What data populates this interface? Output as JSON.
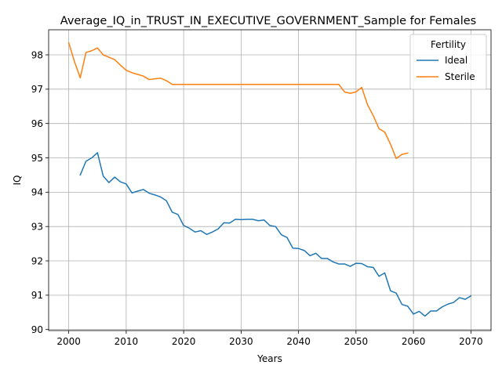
{
  "chart_data": {
    "type": "line",
    "title": "Average_IQ_in_TRUST_IN_EXECUTIVE_GOVERNMENT_Sample for Females",
    "xlabel": "Years",
    "ylabel": "IQ",
    "xlim": [
      1996.5,
      2073.5
    ],
    "ylim": [
      89.97,
      98.73
    ],
    "xticks": [
      2000,
      2010,
      2020,
      2030,
      2040,
      2050,
      2060,
      2070
    ],
    "yticks": [
      90,
      91,
      92,
      93,
      94,
      95,
      96,
      97,
      98
    ],
    "grid": true,
    "legend": {
      "title": "Fertility",
      "placement": "top-right"
    },
    "series": [
      {
        "name": "Ideal",
        "color": "#1f77b4",
        "x": [
          2002,
          2003,
          2004,
          2005,
          2006,
          2007,
          2008,
          2009,
          2010,
          2011,
          2012,
          2013,
          2014,
          2015,
          2016,
          2017,
          2018,
          2019,
          2020,
          2021,
          2022,
          2023,
          2024,
          2025,
          2026,
          2027,
          2028,
          2029,
          2030,
          2031,
          2032,
          2033,
          2034,
          2035,
          2036,
          2037,
          2038,
          2039,
          2040,
          2041,
          2042,
          2043,
          2044,
          2045,
          2046,
          2047,
          2048,
          2049,
          2050,
          2051,
          2052,
          2053,
          2054,
          2055,
          2056,
          2057,
          2058,
          2059,
          2060,
          2061,
          2062,
          2063,
          2064,
          2065,
          2066,
          2067,
          2068,
          2069,
          2070
        ],
        "y": [
          94.5,
          94.9,
          95.0,
          95.15,
          94.47,
          94.28,
          94.44,
          94.3,
          94.24,
          93.98,
          94.03,
          94.08,
          93.97,
          93.92,
          93.86,
          93.75,
          93.42,
          93.35,
          93.03,
          92.95,
          92.84,
          92.88,
          92.77,
          92.84,
          92.93,
          93.11,
          93.1,
          93.21,
          93.2,
          93.21,
          93.21,
          93.17,
          93.19,
          93.03,
          93.0,
          92.76,
          92.68,
          92.37,
          92.36,
          92.3,
          92.15,
          92.22,
          92.07,
          92.07,
          91.97,
          91.91,
          91.91,
          91.84,
          91.93,
          91.92,
          91.83,
          91.81,
          91.55,
          91.65,
          91.13,
          91.06,
          90.73,
          90.68,
          90.45,
          90.53,
          90.39,
          90.54,
          90.54,
          90.66,
          90.74,
          90.79,
          90.93,
          90.88,
          90.98
        ]
      },
      {
        "name": "Sterile",
        "color": "#ff7f0e",
        "x": [
          2000,
          2001,
          2002,
          2003,
          2004,
          2005,
          2006,
          2007,
          2008,
          2009,
          2010,
          2011,
          2012,
          2013,
          2014,
          2015,
          2016,
          2017,
          2018,
          2019,
          2020,
          2021,
          2022,
          2023,
          2024,
          2025,
          2026,
          2027,
          2028,
          2029,
          2030,
          2031,
          2032,
          2033,
          2034,
          2035,
          2036,
          2037,
          2038,
          2039,
          2040,
          2041,
          2042,
          2043,
          2044,
          2045,
          2046,
          2047,
          2048,
          2049,
          2050,
          2051,
          2052,
          2053,
          2054,
          2055,
          2056,
          2057,
          2058,
          2059
        ],
        "y": [
          98.35,
          97.8,
          97.33,
          98.07,
          98.12,
          98.2,
          98.0,
          97.93,
          97.86,
          97.7,
          97.55,
          97.48,
          97.43,
          97.38,
          97.28,
          97.3,
          97.32,
          97.25,
          97.14,
          97.14,
          97.14,
          97.14,
          97.14,
          97.14,
          97.14,
          97.14,
          97.14,
          97.14,
          97.14,
          97.14,
          97.14,
          97.14,
          97.14,
          97.14,
          97.14,
          97.14,
          97.14,
          97.14,
          97.14,
          97.14,
          97.14,
          97.14,
          97.14,
          97.14,
          97.14,
          97.14,
          97.14,
          97.14,
          96.92,
          96.88,
          96.92,
          97.05,
          96.55,
          96.23,
          95.85,
          95.75,
          95.4,
          94.98,
          95.1,
          95.14
        ]
      }
    ]
  }
}
